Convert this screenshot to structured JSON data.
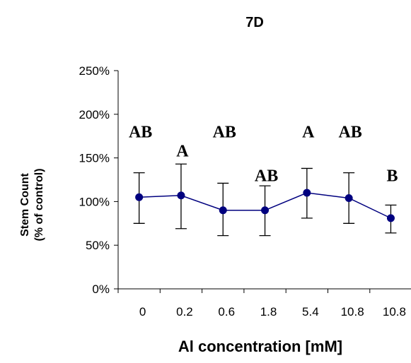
{
  "chart_data": {
    "type": "line",
    "title": "7D",
    "xlabel": "Al concentration [mM]",
    "ylabel_lines": [
      "Stem Count",
      "(% of control)"
    ],
    "categories": [
      "0",
      "0.2",
      "0.6",
      "1.8",
      "5.4",
      "10.8",
      "10.8"
    ],
    "y_tick_labels": [
      "0%",
      "50%",
      "100%",
      "150%",
      "200%",
      "250%"
    ],
    "y_tick_values": [
      0,
      50,
      100,
      150,
      200,
      250
    ],
    "ylim": [
      0,
      250
    ],
    "grid": false,
    "legend": "none",
    "series": [
      {
        "values": [
          105,
          107,
          90,
          90,
          110,
          104,
          81
        ],
        "error_low": [
          75,
          69,
          61,
          61,
          81,
          75,
          64
        ],
        "error_high": [
          133,
          143,
          121,
          118,
          138,
          133,
          96
        ],
        "color": "#00007f"
      }
    ],
    "annotations": [
      "AB",
      "A",
      "AB",
      "AB",
      "A",
      "AB",
      "B"
    ],
    "annotation_y": [
      180,
      158,
      180,
      130,
      180,
      180,
      130
    ]
  }
}
